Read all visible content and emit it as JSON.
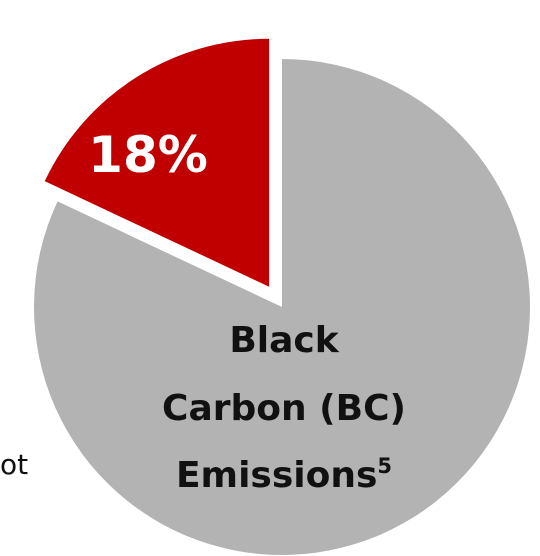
{
  "chart_data": {
    "type": "pie",
    "slices": [
      {
        "label": "18%",
        "value": 18,
        "color": "#c00000",
        "exploded": true
      },
      {
        "label": "",
        "value": 82,
        "color": "#b3b3b3",
        "exploded": false
      }
    ],
    "center_label": {
      "lines": [
        "Black",
        "Carbon (BC)",
        "Emissions"
      ],
      "superscript": "5"
    },
    "partial_text_left": "ot"
  }
}
